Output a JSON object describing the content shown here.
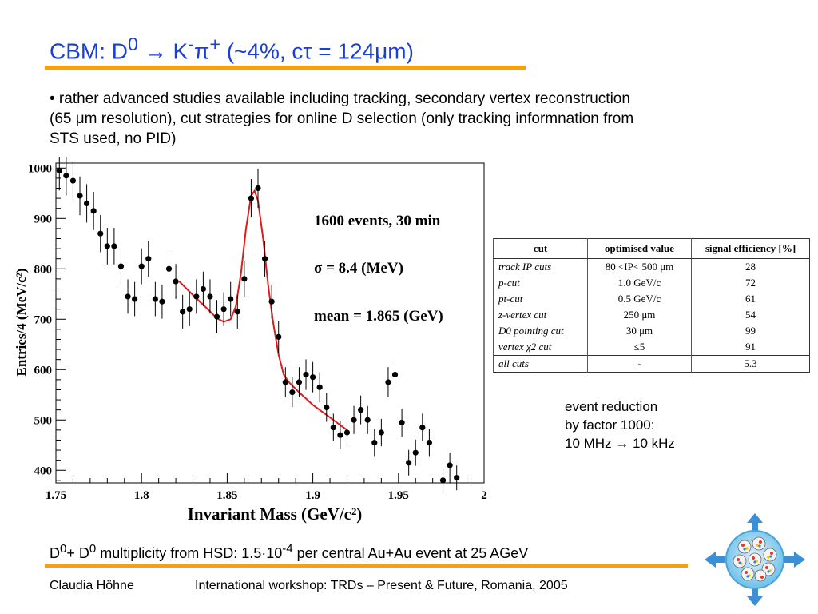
{
  "slide": {
    "title_parts": [
      "CBM: D",
      "0",
      " → K",
      "-",
      "π",
      "+",
      " (~4%, cτ = 124μm)"
    ],
    "bullet_lines": [
      "• rather advanced studies available including tracking, secondary vertex reconstruction",
      "(65 μm resolution), cut strategies for online D selection (only tracking informnation from",
      "STS used, no PID)"
    ],
    "event_reduction": [
      "event reduction",
      "by factor 1000:",
      "10 MHz → 10 kHz"
    ],
    "multiplicity_parts": [
      "D",
      "0",
      "+ D",
      "0",
      " multiplicity from HSD: 1.5·10",
      "-4",
      " per central Au+Au event at 25 AGeV"
    ],
    "footer": {
      "author": "Claudia Höhne",
      "venue": "International workshop: TRDs – Present & Future, Romania, 2005"
    },
    "logo_icon": "cbm-detector-logo-icon",
    "accent_color": "#f5a011",
    "title_color": "#1a3fd8"
  },
  "cut_table": {
    "headers": [
      "cut",
      "optimised value",
      "signal efficiency [%]"
    ],
    "rows": [
      [
        "track IP cuts",
        "80 <IP< 500 μm",
        "28"
      ],
      [
        "p-cut",
        "1.0 GeV/c",
        "72"
      ],
      [
        "pt-cut",
        "0.5 GeV/c",
        "61"
      ],
      [
        "z-vertex cut",
        "250 μm",
        "54"
      ],
      [
        "D0  pointing cut",
        "30 μm",
        "99"
      ],
      [
        "vertex χ2 cut",
        "≤5",
        "91"
      ],
      [
        "all cuts",
        "-",
        "5.3"
      ]
    ]
  },
  "chart_data": {
    "type": "scatter",
    "xlabel": "Invariant Mass (GeV/c²)",
    "ylabel": "Entries/4 (MeV/c²)",
    "xlim": [
      1.75,
      2.0
    ],
    "ylim": [
      375,
      1010
    ],
    "xticks": [
      "1.75",
      "1.8",
      "1.85",
      "1.9",
      "1.95",
      "2"
    ],
    "yticks": [
      "400",
      "500",
      "600",
      "700",
      "800",
      "900",
      "1000"
    ],
    "annotations": [
      "1600 events, 30 min",
      "σ = 8.4 (MeV)",
      "mean = 1.865 (GeV)"
    ],
    "grid": false,
    "x": [
      1.752,
      1.756,
      1.76,
      1.764,
      1.768,
      1.772,
      1.776,
      1.78,
      1.784,
      1.788,
      1.792,
      1.796,
      1.8,
      1.804,
      1.808,
      1.812,
      1.816,
      1.82,
      1.824,
      1.828,
      1.832,
      1.836,
      1.84,
      1.844,
      1.848,
      1.852,
      1.856,
      1.86,
      1.864,
      1.868,
      1.872,
      1.876,
      1.88,
      1.884,
      1.888,
      1.892,
      1.896,
      1.9,
      1.904,
      1.908,
      1.912,
      1.916,
      1.92,
      1.924,
      1.928,
      1.932,
      1.936,
      1.94,
      1.944,
      1.948,
      1.952,
      1.956,
      1.96,
      1.964,
      1.968,
      1.976,
      1.98,
      1.984
    ],
    "y": [
      995,
      985,
      975,
      945,
      930,
      915,
      870,
      845,
      845,
      805,
      745,
      740,
      805,
      820,
      740,
      735,
      800,
      775,
      715,
      720,
      745,
      760,
      745,
      705,
      720,
      740,
      715,
      780,
      940,
      960,
      820,
      735,
      665,
      575,
      555,
      575,
      590,
      585,
      565,
      525,
      485,
      470,
      475,
      500,
      520,
      500,
      455,
      475,
      575,
      590,
      495,
      415,
      435,
      485,
      455,
      380,
      410,
      385
    ],
    "fit_x": [
      1.822,
      1.83,
      1.838,
      1.844,
      1.848,
      1.852,
      1.855,
      1.858,
      1.861,
      1.864,
      1.866,
      1.868,
      1.871,
      1.874,
      1.877,
      1.88,
      1.883,
      1.886,
      1.892,
      1.9,
      1.91,
      1.92
    ],
    "fit_y": [
      775,
      748,
      722,
      702,
      695,
      700,
      725,
      790,
      880,
      945,
      955,
      935,
      860,
      765,
      690,
      630,
      590,
      575,
      555,
      530,
      505,
      480
    ]
  }
}
